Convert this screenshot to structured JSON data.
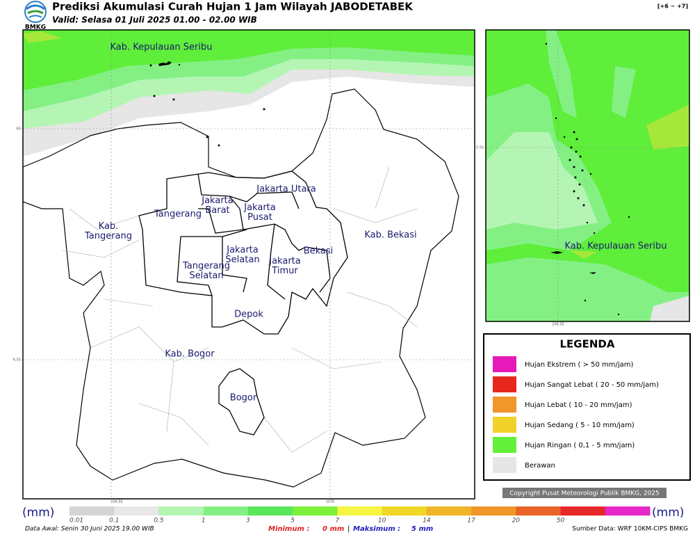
{
  "header": {
    "logo": "BMKG",
    "title": "Prediksi Akumulasi Curah Hujan 1 Jam Wilayah JABODETABEK",
    "subtitle": "Valid: Selasa 01 Juli 2025 01.00 - 02.00 WIB",
    "timezone": "[+6 ~ +7]"
  },
  "map": {
    "regions": [
      "Kab. Kepulauan Seribu",
      "Jakarta Utara",
      "Jakarta\nBarat",
      "Jakarta\nPusat",
      "Tangerang",
      "Kab.\nTangerang",
      "Jakarta\nSelatan",
      "Jakarta\nTimur",
      "Tangerang\nSelatan",
      "Bekasi",
      "Kab. Bekasi",
      "Depok",
      "Kab. Bogor",
      "Bogor"
    ],
    "lat_labels": [
      "6S",
      "6.5S"
    ],
    "lon_labels": [
      "106.5E",
      "107E"
    ]
  },
  "inset": {
    "region": "Kab. Kepulauan Seribu",
    "lat_label": "5.5S",
    "lon_label": "106.5E"
  },
  "legend": {
    "title": "LEGENDA",
    "items": [
      {
        "label": "Hujan Ekstrem ( > 50 mm/jam)",
        "color": "#e61ab8"
      },
      {
        "label": "Hujan Sangat Lebat ( 20 - 50 mm/jam)",
        "color": "#e8281e"
      },
      {
        "label": "Hujan Lebat ( 10 - 20 mm/jam)",
        "color": "#f0962a"
      },
      {
        "label": "Hujan Sedang ( 5 - 10 mm/jam)",
        "color": "#f0d22a"
      },
      {
        "label": "Hujan Ringan ( 0,1 - 5 mm/jam)",
        "color": "#64f03a"
      },
      {
        "label": "Berawan",
        "color": "#e6e6e6"
      }
    ]
  },
  "copyright": "Copyright Pusat Meteorologi Publik BMKG, 2025",
  "colorbar": {
    "unit": "(mm)",
    "labels": [
      "0.01",
      "0.1",
      "0.5",
      "1",
      "3",
      "5",
      "7",
      "10",
      "14",
      "17",
      "20",
      "50"
    ],
    "colors": [
      "#d4d4d4",
      "#e8e8e8",
      "#b4f5b4",
      "#84f084",
      "#5ae65a",
      "#7cf03a",
      "#f5f542",
      "#f0d728",
      "#f0b428",
      "#f09628",
      "#e86428",
      "#e62828",
      "#e628c8"
    ]
  },
  "footer": {
    "data_awal": "Data Awal: Senin 30 Juni 2025 19.00 WIB",
    "min_label": "Minimum :",
    "min_value": "0 mm",
    "separator": "|",
    "max_label": "Maksimum :",
    "max_value": "5 mm",
    "source": "Sumber Data: WRF 10KM-CIPS BMKG"
  }
}
